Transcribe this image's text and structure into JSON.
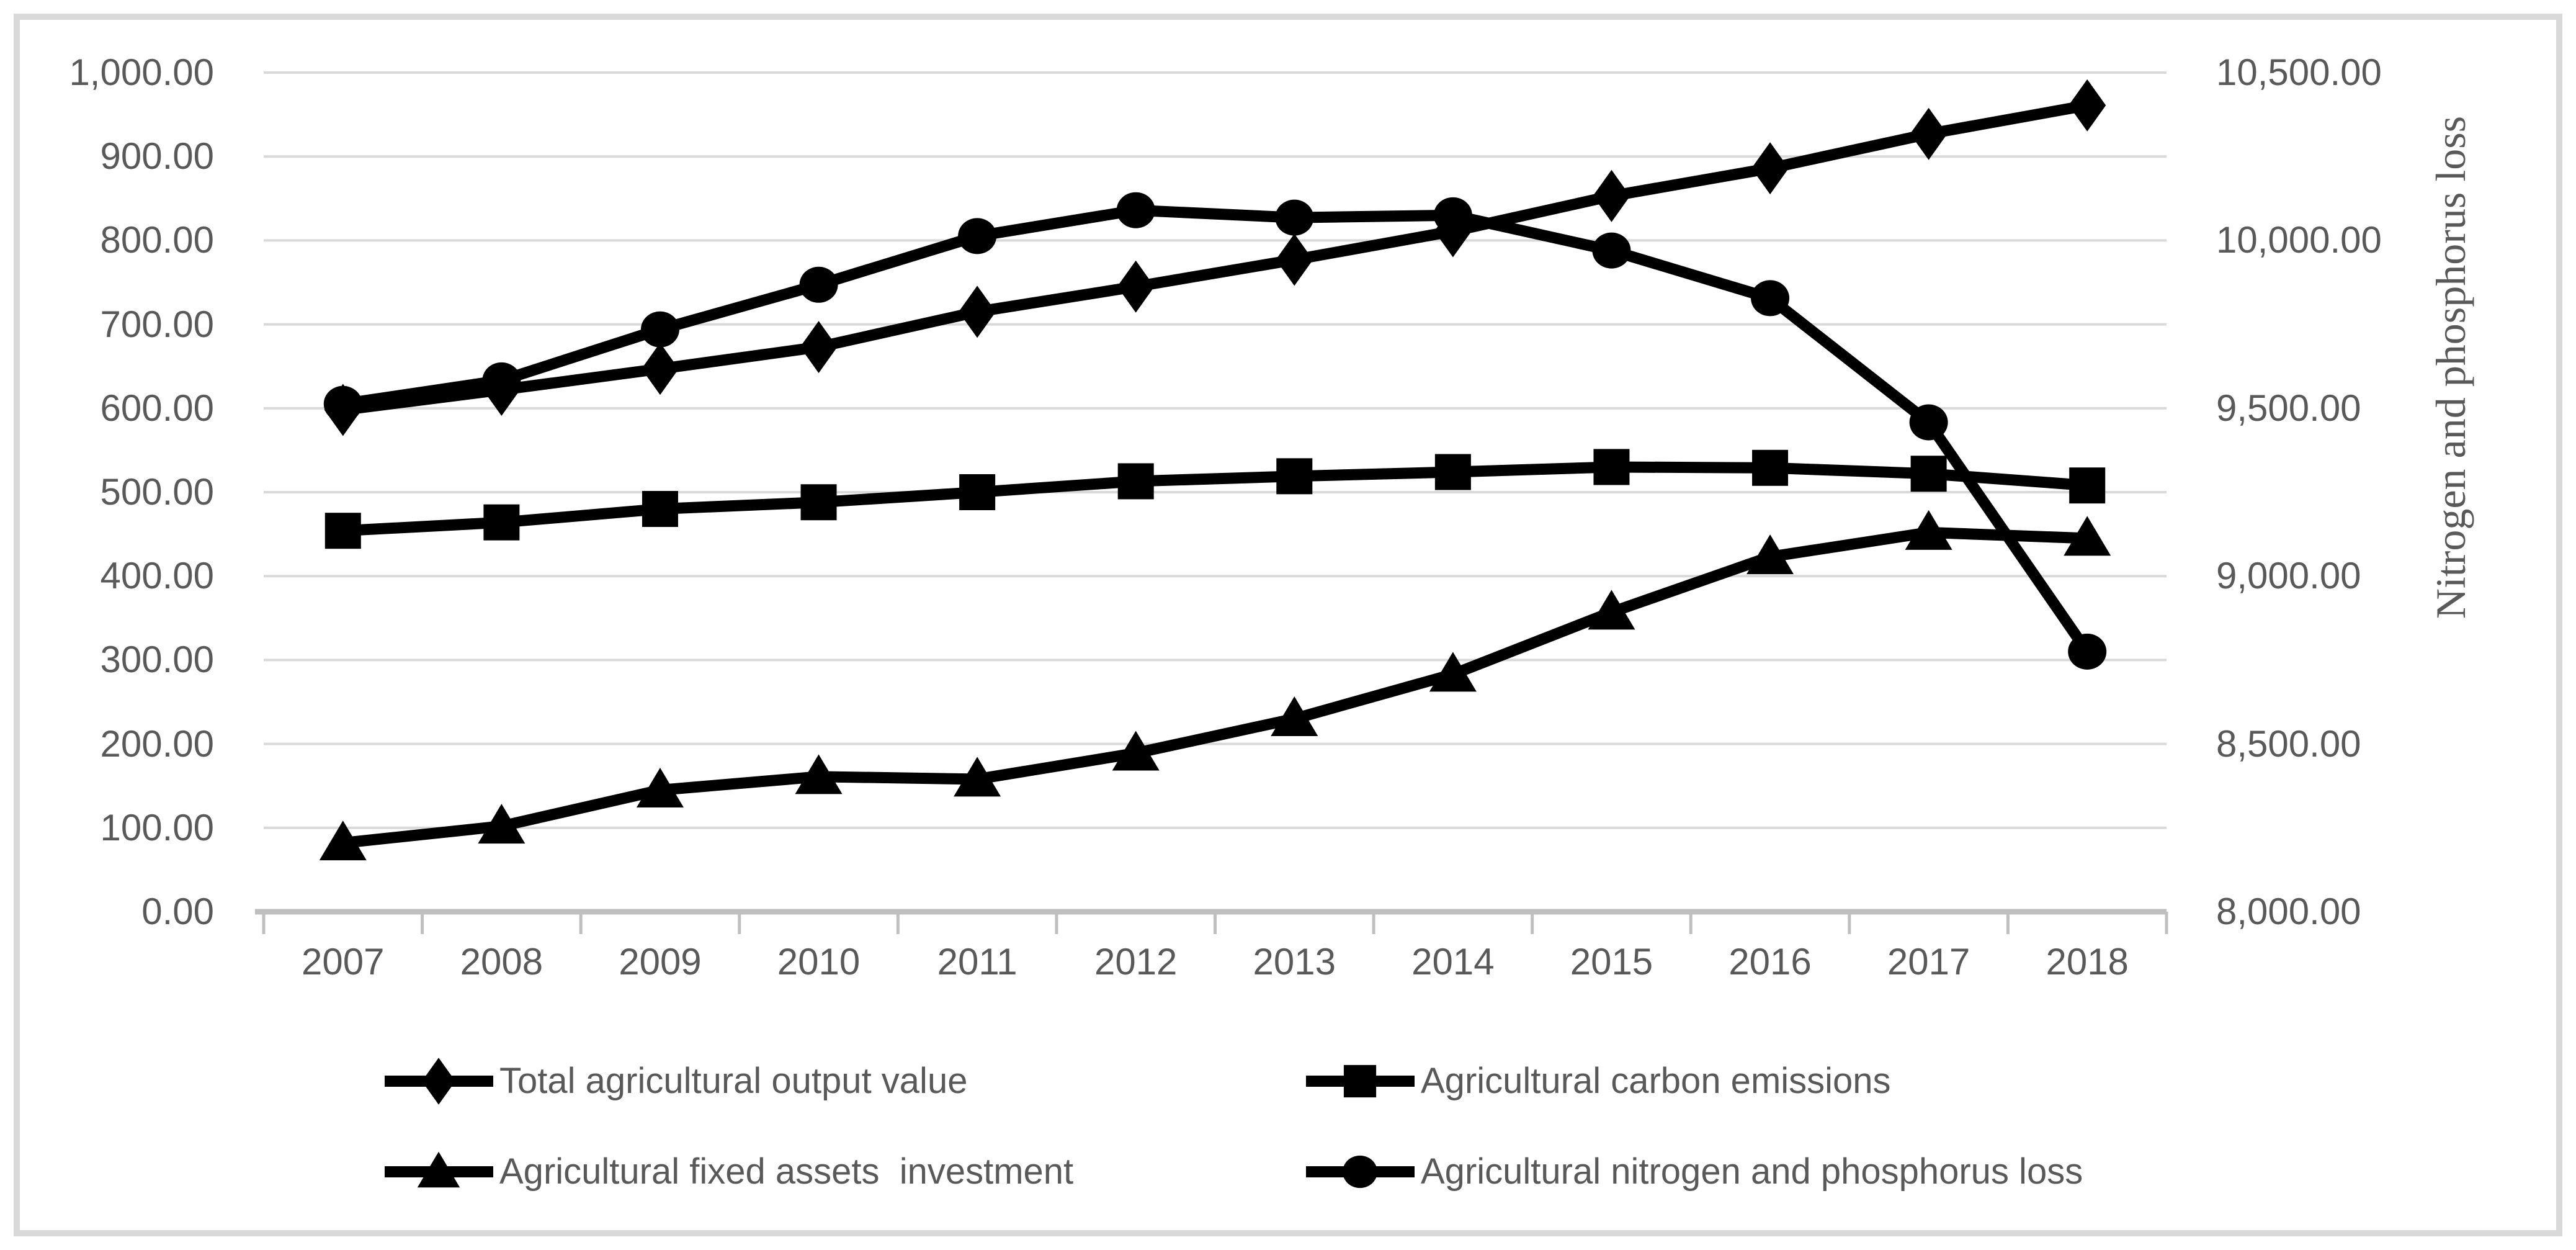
{
  "chart_data": {
    "type": "line",
    "title": "",
    "categories": [
      "2007",
      "2008",
      "2009",
      "2010",
      "2011",
      "2012",
      "2013",
      "2014",
      "2015",
      "2016",
      "2017",
      "2018"
    ],
    "series": [
      {
        "name": "Total agricultural output value",
        "marker": "diamond",
        "axis": "left",
        "color": "#000000",
        "values": [
          598,
          622,
          647,
          673,
          715,
          745,
          777,
          811,
          853,
          886,
          927,
          961
        ]
      },
      {
        "name": "Agricultural carbon emissions",
        "marker": "square",
        "axis": "left",
        "color": "#000000",
        "values": [
          454,
          464,
          480,
          488,
          500,
          513,
          519,
          524,
          530,
          529,
          522,
          508
        ]
      },
      {
        "name": "Agricultural fixed assets  investment",
        "marker": "triangle",
        "axis": "left",
        "color": "#000000",
        "values": [
          82,
          102,
          145,
          161,
          158,
          189,
          230,
          283,
          357,
          423,
          452,
          445
        ]
      },
      {
        "name": "Agricultural nitrogen and phosphorus loss",
        "marker": "circle",
        "axis": "right",
        "color": "#000000",
        "values": [
          9513,
          9583,
          9735,
          9868,
          10013,
          10090,
          10068,
          10075,
          9970,
          9828,
          9458,
          8775
        ]
      }
    ],
    "left_axis": {
      "min": 0,
      "max": 1000,
      "step": 100,
      "tick_labels": [
        "1,000.00",
        "900.00",
        "800.00",
        "700.00",
        "600.00",
        "500.00",
        "400.00",
        "300.00",
        "200.00",
        "100.00",
        "0.00"
      ]
    },
    "right_axis": {
      "min": 8000,
      "max": 10500,
      "step": 500,
      "title": "Nitrogen and phosphorus loss",
      "tick_labels": [
        "10,500.00",
        "10,000.00",
        "9,500.00",
        "9,000.00",
        "8,500.00",
        "8,000.00"
      ]
    },
    "x_axis": {
      "tick_labels": [
        "2007",
        "2008",
        "2009",
        "2010",
        "2011",
        "2012",
        "2013",
        "2014",
        "2015",
        "2016",
        "2017",
        "2018"
      ]
    },
    "grid": true,
    "legend_position": "bottom",
    "colors": {
      "series": "#000000",
      "gridline": "#d9d9d9",
      "axis": "#bfbfbf",
      "label": "#595959",
      "border": "#d9d9d9",
      "background": "#ffffff"
    }
  }
}
